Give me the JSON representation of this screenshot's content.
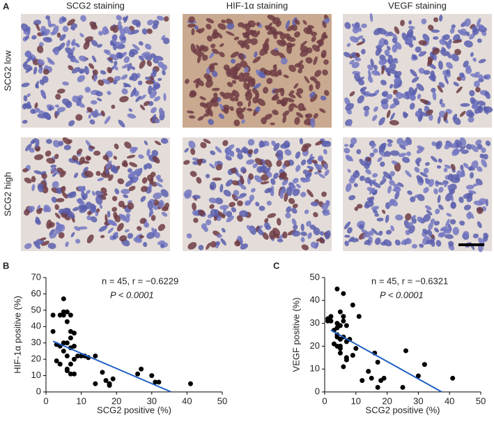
{
  "panel_a": {
    "label": "A",
    "columns": [
      "SCG2 staining",
      "HIF-1α staining",
      "VEGF staining"
    ],
    "rows": [
      "SCG2 low",
      "SCG2 high"
    ]
  },
  "chart_data": [
    {
      "type": "scatter",
      "panel_label": "B",
      "x_label": "SCG2 positive (%)",
      "y_label": "HIF-1α positive (%)",
      "annotations": [
        "n = 45, r = −0.6229",
        "P < 0.0001"
      ],
      "xlim": [
        0,
        50
      ],
      "xticks": [
        0,
        10,
        20,
        30,
        40,
        50
      ],
      "ylim": [
        0,
        70
      ],
      "yticks": [
        0,
        10,
        20,
        30,
        40,
        50,
        60,
        70
      ],
      "color": "#000000",
      "x": [
        2,
        2,
        3,
        3,
        4,
        4,
        4,
        5,
        5,
        5,
        5,
        5,
        6,
        6,
        6,
        6,
        6,
        6,
        7,
        7,
        7,
        7,
        7,
        7,
        8,
        8,
        8,
        8,
        9,
        10,
        11,
        12,
        14,
        14,
        16,
        17,
        18,
        18,
        19,
        26,
        27,
        30,
        31,
        32,
        41
      ],
      "values": [
        47,
        37,
        29,
        19,
        47,
        28,
        17,
        57,
        49,
        47,
        30,
        25,
        43,
        49,
        30,
        22,
        14,
        13,
        47,
        37,
        33,
        27,
        17,
        11,
        36,
        28,
        20,
        11,
        22,
        22,
        22,
        21,
        22,
        5,
        12,
        7,
        4,
        5,
        8,
        11,
        14,
        10,
        6,
        6,
        5
      ],
      "trendline": {
        "x": [
          2,
          35.5
        ],
        "y": [
          31,
          0
        ],
        "color": "#1f5fc4"
      }
    },
    {
      "type": "scatter",
      "panel_label": "C",
      "x_label": "SCG2 positive (%)",
      "y_label": "VEGF positive (%)",
      "annotations": [
        "n = 45, r = −0.6321",
        "P < 0.0001"
      ],
      "xlim": [
        0,
        50
      ],
      "xticks": [
        0,
        10,
        20,
        30,
        40,
        50
      ],
      "ylim": [
        0,
        50
      ],
      "yticks": [
        0,
        10,
        20,
        30,
        40,
        50
      ],
      "color": "#000000",
      "x": [
        1,
        1,
        2,
        2,
        3,
        3,
        4,
        4,
        4,
        4,
        4,
        4,
        5,
        5,
        5,
        5,
        5,
        5,
        6,
        6,
        6,
        6,
        6,
        7,
        7,
        7,
        7,
        8,
        9,
        9,
        10,
        11,
        12,
        14,
        15,
        16,
        17,
        17,
        18,
        19,
        25,
        26,
        30,
        32,
        41
      ],
      "values": [
        32,
        31,
        33,
        31,
        27,
        21,
        45,
        30,
        28,
        25,
        24,
        20,
        35,
        29,
        23,
        20,
        19,
        17,
        43,
        33,
        31,
        24,
        11,
        29,
        22,
        15,
        14,
        23,
        38,
        16,
        19,
        33,
        5,
        9,
        6,
        17,
        13,
        2,
        5,
        6,
        2,
        18,
        7,
        12,
        6
      ],
      "trendline": {
        "x": [
          2,
          37.5
        ],
        "y": [
          27,
          0
        ],
        "color": "#1f5fc4"
      }
    }
  ]
}
